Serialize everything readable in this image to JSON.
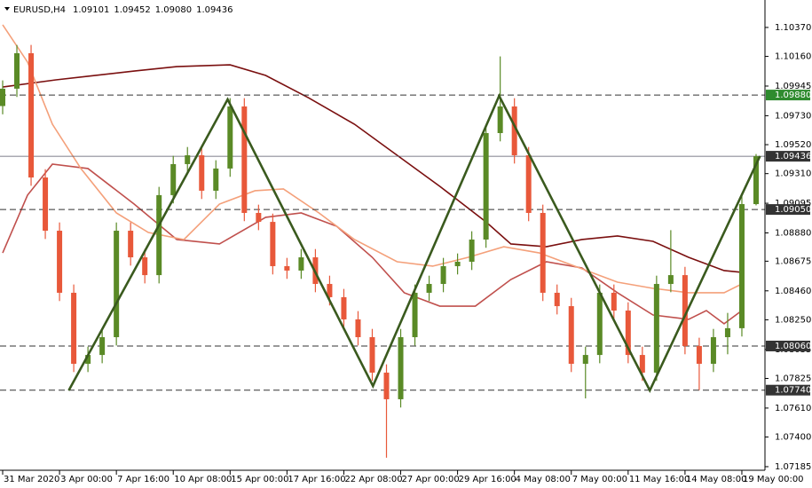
{
  "chart_data": {
    "type": "candlestick",
    "title": "EURUSD,H4",
    "header_values": [
      {
        "value": 1.09101,
        "label": "1.09101"
      },
      {
        "value": 1.09452,
        "label": "1.09452"
      },
      {
        "value": 1.0908,
        "label": "1.09080"
      },
      {
        "value": 1.09436,
        "label": "1.09436"
      }
    ],
    "x": [
      0,
      4,
      8,
      12,
      16,
      20,
      24,
      28,
      32,
      36,
      40,
      44,
      48,
      52,
      56,
      60,
      64,
      68,
      72,
      76,
      80,
      84,
      88,
      92,
      96,
      100,
      104,
      108,
      112,
      116,
      120,
      124,
      128,
      132,
      136,
      140,
      144,
      148,
      152,
      156,
      160,
      164,
      168,
      172,
      176,
      180,
      184,
      188,
      192,
      196,
      200,
      204,
      208,
      212
    ],
    "open": [
      1.098,
      1.09926,
      1.10183,
      1.09282,
      1.08896,
      1.08446,
      1.07931,
      1.07995,
      1.08124,
      1.08896,
      1.08703,
      1.08574,
      1.09154,
      1.09379,
      1.09443,
      1.09186,
      1.09347,
      1.09797,
      1.09025,
      1.0896,
      1.08639,
      1.08607,
      1.08703,
      1.0851,
      1.08414,
      1.08253,
      1.08124,
      1.07867,
      1.07674,
      1.08124,
      1.08446,
      1.0851,
      1.08639,
      1.08671,
      1.08832,
      1.09604,
      1.09797,
      1.09443,
      1.09025,
      1.08446,
      1.08349,
      1.07931,
      1.07995,
      1.08446,
      1.08317,
      1.07995,
      1.07867,
      1.0851,
      1.08574,
      1.0806,
      1.07931,
      1.08124,
      1.08189,
      1.09089
    ],
    "high": [
      1.09986,
      1.10243,
      1.10243,
      1.09342,
      1.08956,
      1.08506,
      1.08055,
      1.08184,
      1.08956,
      1.08956,
      1.08763,
      1.09214,
      1.09439,
      1.09503,
      1.09503,
      1.09407,
      1.09857,
      1.09857,
      1.09085,
      1.0902,
      1.08699,
      1.08763,
      1.08763,
      1.0857,
      1.08474,
      1.08313,
      1.08184,
      1.07927,
      1.08184,
      1.08506,
      1.0857,
      1.08699,
      1.08731,
      1.08892,
      1.09664,
      1.1016,
      1.09857,
      1.09503,
      1.09085,
      1.08506,
      1.08409,
      1.08055,
      1.08506,
      1.08506,
      1.08377,
      1.08055,
      1.0857,
      1.089,
      1.08634,
      1.0812,
      1.08184,
      1.083,
      1.09149,
      1.09452
    ],
    "low": [
      1.0974,
      1.09866,
      1.09222,
      1.08836,
      1.08386,
      1.07871,
      1.07871,
      1.07935,
      1.08064,
      1.08643,
      1.08514,
      1.08514,
      1.09094,
      1.09319,
      1.09126,
      1.09126,
      1.09287,
      1.08965,
      1.089,
      1.08579,
      1.08547,
      1.08547,
      1.0845,
      1.08354,
      1.08193,
      1.08064,
      1.07807,
      1.0725,
      1.07614,
      1.08064,
      1.08386,
      1.0845,
      1.08579,
      1.08611,
      1.08772,
      1.09544,
      1.09383,
      1.08965,
      1.08386,
      1.08289,
      1.07871,
      1.0768,
      1.07935,
      1.08257,
      1.07935,
      1.07807,
      1.07807,
      1.0845,
      1.08,
      1.0774,
      1.07871,
      1.08,
      1.08129,
      1.0908
    ],
    "close": [
      1.09926,
      1.10183,
      1.09282,
      1.08896,
      1.08446,
      1.07931,
      1.07995,
      1.08124,
      1.08896,
      1.08703,
      1.08574,
      1.09154,
      1.09379,
      1.09443,
      1.09186,
      1.09347,
      1.09797,
      1.09025,
      1.0896,
      1.08639,
      1.08607,
      1.08703,
      1.0851,
      1.08414,
      1.08253,
      1.08124,
      1.07867,
      1.07674,
      1.08124,
      1.08446,
      1.0851,
      1.08639,
      1.08671,
      1.08832,
      1.09604,
      1.09797,
      1.09443,
      1.09025,
      1.08446,
      1.08349,
      1.07931,
      1.07995,
      1.08446,
      1.08317,
      1.07995,
      1.07867,
      1.0851,
      1.08574,
      1.0806,
      1.07931,
      1.08124,
      1.08189,
      1.09089,
      1.09436
    ],
    "up_color": "#5a8a26",
    "down_color": "#e8583a",
    "xlim": [
      0,
      214
    ],
    "xticks": [
      {
        "value": 0,
        "label": "31 Mar 2020"
      },
      {
        "value": 16,
        "label": "3 Apr 00:00"
      },
      {
        "value": 32,
        "label": "7 Apr 16:00"
      },
      {
        "value": 48,
        "label": "10 Apr 08:00"
      },
      {
        "value": 64,
        "label": "15 Apr 00:00"
      },
      {
        "value": 80,
        "label": "17 Apr 16:00"
      },
      {
        "value": 96,
        "label": "22 Apr 08:00"
      },
      {
        "value": 112,
        "label": "27 Apr 00:00"
      },
      {
        "value": 128,
        "label": "29 Apr 16:00"
      },
      {
        "value": 144,
        "label": "4 May 08:00"
      },
      {
        "value": 160,
        "label": "7 May 00:00"
      },
      {
        "value": 176,
        "label": "11 May 16:00"
      },
      {
        "value": 192,
        "label": "14 May 08:00"
      },
      {
        "value": 208,
        "label": "19 May 00:00"
      }
    ],
    "ylim": [
      1.07159,
      1.10569
    ],
    "yticks": [
      {
        "value": 1.1037,
        "label": "1.10370"
      },
      {
        "value": 1.1016,
        "label": "1.10160"
      },
      {
        "value": 1.09945,
        "label": "1.09945"
      },
      {
        "value": 1.0973,
        "label": "1.09730"
      },
      {
        "value": 1.0952,
        "label": "1.09520"
      },
      {
        "value": 1.0931,
        "label": "1.09310"
      },
      {
        "value": 1.09095,
        "label": "1.09095"
      },
      {
        "value": 1.0888,
        "label": "1.08880"
      },
      {
        "value": 1.08675,
        "label": "1.08675"
      },
      {
        "value": 1.0846,
        "label": "1.08460"
      },
      {
        "value": 1.0825,
        "label": "1.08250"
      },
      {
        "value": 1.08035,
        "label": "1.08035"
      },
      {
        "value": 1.07825,
        "label": "1.07825"
      },
      {
        "value": 1.0761,
        "label": "1.07610"
      },
      {
        "value": 1.074,
        "label": "1.07400"
      },
      {
        "value": 1.07185,
        "label": "1.07185"
      }
    ],
    "levels": [
      {
        "value": 1.0988,
        "label": "1.09880",
        "style": "dashed",
        "color": "#2e8b2e"
      },
      {
        "value": 1.09436,
        "label": "1.09436",
        "style": "solid",
        "color": "#333333"
      },
      {
        "value": 1.0905,
        "label": "1.09050",
        "style": "dashed",
        "color": "#333333"
      },
      {
        "value": 1.0806,
        "label": "1.08060",
        "style": "dashed",
        "color": "#333333"
      },
      {
        "value": 1.0774,
        "label": "1.07740",
        "style": "dashed",
        "color": "#333333"
      }
    ],
    "moving_averages": [
      {
        "color": "#7a0f0f",
        "x": [
          0,
          15,
          24,
          37,
          49,
          64,
          74,
          86,
          99,
          111,
          123,
          136,
          143,
          153,
          163,
          173,
          183,
          193,
          203,
          208
        ],
        "values": [
          1.09938,
          1.0999,
          1.10016,
          1.10054,
          1.10086,
          1.10099,
          1.10022,
          1.09861,
          1.09668,
          1.09443,
          1.09218,
          1.0896,
          1.088,
          1.0878,
          1.08832,
          1.08858,
          1.08819,
          1.08703,
          1.08607,
          1.08594
        ]
      },
      {
        "color": "#c0504d",
        "x": [
          0,
          7,
          14,
          24,
          37,
          49,
          61,
          74,
          84,
          94,
          104,
          113,
          123,
          133,
          143,
          153,
          163,
          173,
          183,
          193,
          198,
          203,
          208
        ],
        "values": [
          1.08735,
          1.09154,
          1.09379,
          1.09347,
          1.09089,
          1.08832,
          1.088,
          1.08993,
          1.09025,
          1.08928,
          1.08703,
          1.08446,
          1.08349,
          1.08349,
          1.08542,
          1.08671,
          1.08626,
          1.08446,
          1.08285,
          1.08253,
          1.08317,
          1.08221,
          1.08317
        ]
      },
      {
        "color": "#f4a07a",
        "x": [
          0,
          7,
          14,
          22,
          32,
          41,
          51,
          61,
          71,
          79,
          89,
          99,
          111,
          121,
          131,
          141,
          151,
          161,
          173,
          183,
          193,
          203,
          208
        ],
        "values": [
          1.10389,
          1.10119,
          1.09668,
          1.09347,
          1.09025,
          1.08883,
          1.08832,
          1.09089,
          1.09186,
          1.09199,
          1.09025,
          1.08832,
          1.08671,
          1.08639,
          1.08703,
          1.0878,
          1.08735,
          1.08639,
          1.08523,
          1.08478,
          1.08446,
          1.08446,
          1.0851
        ]
      }
    ],
    "pattern": {
      "color": "#3a5a1e",
      "x": [
        18.6,
        63.3,
        104.2,
        139.7,
        182.1,
        213.1
      ],
      "values": [
        1.07738,
        1.09848,
        1.0777,
        1.09874,
        1.07738,
        1.09437
      ]
    }
  }
}
